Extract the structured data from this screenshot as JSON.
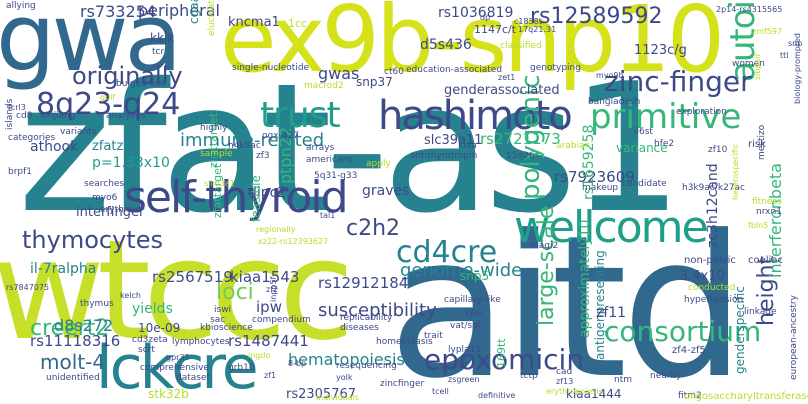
{
  "palette": [
    "#440154",
    "#482878",
    "#3e4989",
    "#31688e",
    "#26828e",
    "#1f9e89",
    "#35b779",
    "#6ece58",
    "#b5de2b",
    "#fde725"
  ],
  "words": [
    {
      "text": "zfat-as1",
      "color": "#26828e"
    },
    {
      "text": "aitd",
      "color": "#31688e"
    },
    {
      "text": "wtccc",
      "color": "#c8df2a"
    },
    {
      "text": "ex9b-snp10",
      "color": "#d5e21a"
    },
    {
      "text": "gwa",
      "color": "#31688e"
    },
    {
      "text": "lckcre",
      "color": "#26828e"
    },
    {
      "text": "self-thyroid",
      "color": "#3e4989"
    },
    {
      "text": "wellcome",
      "color": "#1f9e89"
    },
    {
      "text": "autoimmune",
      "color": "#35b779"
    },
    {
      "text": "hashimoto",
      "color": "#3e4989"
    },
    {
      "text": "trust",
      "color": "#1f9e89"
    },
    {
      "text": "8q23-q24",
      "color": "#3e4989"
    },
    {
      "text": "originally",
      "color": "#3e4989"
    },
    {
      "text": "zinc-finger",
      "color": "#3e4989"
    },
    {
      "text": "primitive",
      "color": "#35b779"
    },
    {
      "text": "polygenic",
      "color": "#35b779"
    },
    {
      "text": "consortium",
      "color": "#35b779"
    },
    {
      "text": "epoxomicin",
      "color": "#3e4989"
    },
    {
      "text": "cd4cre",
      "color": "#26828e"
    },
    {
      "text": "thymocytes",
      "color": "#3e4989"
    },
    {
      "text": "creert2",
      "color": "#35b779"
    },
    {
      "text": "molt-4",
      "color": "#31688e"
    },
    {
      "text": "hematopoiesis",
      "color": "#26828e"
    },
    {
      "text": "large-scale",
      "color": "#35b779"
    },
    {
      "text": "height",
      "color": "#3e4989"
    },
    {
      "text": "genome-wide",
      "color": "#26828e"
    },
    {
      "text": "immune-related",
      "color": "#26828e"
    },
    {
      "text": "c2h2",
      "color": "#3e4989"
    },
    {
      "text": "loci",
      "color": "#6ece58"
    },
    {
      "text": "susceptibility",
      "color": "#3e4989"
    },
    {
      "text": "rs12589592",
      "color": "#3e4989"
    },
    {
      "text": "rs1036819",
      "color": "#3e4989"
    },
    {
      "text": "rs733254",
      "color": "#3e4989"
    },
    {
      "text": "peripheral",
      "color": "#3e4989"
    },
    {
      "text": "interferonbeta",
      "color": "#35b779"
    },
    {
      "text": "zc3h12cand",
      "color": "#3e4989"
    },
    {
      "text": "rs2567519",
      "color": "#3e4989"
    },
    {
      "text": "kiaa1543",
      "color": "#3e4989"
    },
    {
      "text": "rs12912184",
      "color": "#3e4989"
    },
    {
      "text": "rs11118316",
      "color": "#3e4989"
    },
    {
      "text": "rs1487441",
      "color": "#3e4989"
    },
    {
      "text": "rs2305767",
      "color": "#3e4989"
    },
    {
      "text": "rs2721173",
      "color": "#35b779"
    },
    {
      "text": "rs7923609",
      "color": "#3e4989"
    },
    {
      "text": "rs1659258",
      "color": "#35b779"
    },
    {
      "text": "approximately10",
      "color": "#35b779"
    },
    {
      "text": "antigenpresenting",
      "color": "#26828e"
    },
    {
      "text": "genderspecific",
      "color": "#26828e"
    },
    {
      "text": "gwas",
      "color": "#3e4989"
    },
    {
      "text": "d8s272",
      "color": "#26828e"
    },
    {
      "text": "ptpn22",
      "color": "#35b779"
    },
    {
      "text": "graves",
      "color": "#3e4989"
    },
    {
      "text": "dipc2",
      "color": "#3e4989"
    },
    {
      "text": "slc39a11",
      "color": "#3e4989"
    },
    {
      "text": "genderassociated",
      "color": "#3e4989"
    },
    {
      "text": "athook",
      "color": "#3e4989"
    },
    {
      "text": "zfatzsg",
      "color": "#26828e"
    },
    {
      "text": "p=1.33x10",
      "color": "#1f9e89"
    },
    {
      "text": "interfinger",
      "color": "#3e4989"
    },
    {
      "text": "il-7ralpha",
      "color": "#26828e"
    },
    {
      "text": "3.4x10",
      "color": "#3e4989"
    },
    {
      "text": "yields",
      "color": "#35b779"
    },
    {
      "text": "10e-09",
      "color": "#3e4989"
    },
    {
      "text": "ipw",
      "color": "#3e4989"
    },
    {
      "text": "1123c/g",
      "color": "#3e4989"
    },
    {
      "text": "kncma1",
      "color": "#3e4989"
    },
    {
      "text": "d5s436",
      "color": "#3e4989"
    },
    {
      "text": "variance",
      "color": "#35b779"
    },
    {
      "text": "feasible",
      "color": "#35b779"
    },
    {
      "text": "zf11",
      "color": "#3e4989"
    },
    {
      "text": "stk32b",
      "color": "#b5de2b"
    },
    {
      "text": "snp37",
      "color": "#3e4989"
    },
    {
      "text": "snp5",
      "color": "#35b779"
    },
    {
      "text": "kiaa1444",
      "color": "#3e4989"
    },
    {
      "text": "cgaangtgc",
      "color": "#26828e"
    },
    {
      "text": "kkik",
      "color": "#3e4989"
    },
    {
      "text": "1147c/t",
      "color": "#3e4989"
    },
    {
      "text": "1cc",
      "color": "#b5de2b"
    },
    {
      "text": "zinctarget",
      "color": "#35b779"
    },
    {
      "text": "zfattarget",
      "color": "#35b779"
    },
    {
      "text": "non-pelvic",
      "color": "#3e4989"
    },
    {
      "text": "coeliac",
      "color": "#3e4989"
    },
    {
      "text": "169tt",
      "color": "#35b779"
    },
    {
      "text": "zf4-zf5",
      "color": "#3e4989"
    },
    {
      "text": "bangladesh",
      "color": "#3e4989"
    },
    {
      "text": "fitm2",
      "color": "#3e4989"
    },
    {
      "text": "oligosaccharyltransferase",
      "color": "#b5de2b"
    },
    {
      "text": "european-ancestry",
      "color": "#3e4989"
    },
    {
      "text": "hypertension",
      "color": "#3e4989"
    },
    {
      "text": "conducted",
      "color": "#b5de2b"
    },
    {
      "text": "linkage",
      "color": "#3e4989"
    },
    {
      "text": "exploration",
      "color": "#3e4989"
    },
    {
      "text": "cd8",
      "color": "#3e4989"
    },
    {
      "text": "xinjiang",
      "color": "#3e4989"
    },
    {
      "text": "analyses",
      "color": "#3e4989"
    },
    {
      "text": "islands",
      "color": "#3e4989"
    },
    {
      "text": "variants",
      "color": "#3e4989"
    },
    {
      "text": "categories",
      "color": "#3e4989"
    },
    {
      "text": "searches",
      "color": "#3e4989"
    },
    {
      "text": "brpf1",
      "color": "#3e4989"
    },
    {
      "text": "myo6",
      "color": "#3e4989"
    },
    {
      "text": "erythroid",
      "color": "#3e4989"
    },
    {
      "text": "thymus",
      "color": "#3e4989"
    },
    {
      "text": "scrt",
      "color": "#3e4989"
    },
    {
      "text": "comprehensive",
      "color": "#3e4989"
    },
    {
      "text": "unidentified",
      "color": "#3e4989"
    },
    {
      "text": "dataset",
      "color": "#3e4989"
    },
    {
      "text": "grb10",
      "color": "#3e4989"
    },
    {
      "text": "kbioscience",
      "color": "#3e4989"
    },
    {
      "text": "compendium",
      "color": "#3e4989"
    },
    {
      "text": "replicability",
      "color": "#3e4989"
    },
    {
      "text": "diseases",
      "color": "#3e4989"
    },
    {
      "text": "homeostasis",
      "color": "#3e4989"
    },
    {
      "text": "resequencing",
      "color": "#3e4989"
    },
    {
      "text": "zincfinger",
      "color": "#3e4989"
    },
    {
      "text": "lymphocytes",
      "color": "#3e4989"
    },
    {
      "text": "cd3zeta",
      "color": "#3e4989"
    },
    {
      "text": "iswi",
      "color": "#3e4989"
    },
    {
      "text": "sac",
      "color": "#3e4989"
    },
    {
      "text": "trait",
      "color": "#3e4989"
    },
    {
      "text": "lypla11",
      "color": "#3e4989"
    },
    {
      "text": "vat/sat",
      "color": "#3e4989"
    },
    {
      "text": "tctp",
      "color": "#3e4989"
    },
    {
      "text": "nearby",
      "color": "#3e4989"
    },
    {
      "text": "ntm",
      "color": "#3e4989"
    },
    {
      "text": "cad",
      "color": "#3e4989"
    },
    {
      "text": "candidate",
      "color": "#3e4989"
    },
    {
      "text": "makeup",
      "color": "#3e4989"
    },
    {
      "text": "h3k9ac/k27ac",
      "color": "#3e4989"
    },
    {
      "text": "fitness",
      "color": "#b5de2b"
    },
    {
      "text": "nrxn1",
      "color": "#3e4989"
    },
    {
      "text": "mestizo",
      "color": "#3e4989"
    },
    {
      "text": "risk",
      "color": "#3e4989"
    },
    {
      "text": "zf10",
      "color": "#3e4989"
    },
    {
      "text": "il6st",
      "color": "#3e4989"
    },
    {
      "text": "hfe2",
      "color": "#3e4989"
    },
    {
      "text": "arabian",
      "color": "#b5de2b"
    },
    {
      "text": "15q26",
      "color": "#3e4989"
    },
    {
      "text": "kiaa",
      "color": "#3e4989"
    },
    {
      "text": "americans",
      "color": "#3e4989"
    },
    {
      "text": "arrays",
      "color": "#3e4989"
    },
    {
      "text": "apply",
      "color": "#b5de2b"
    },
    {
      "text": "zf3",
      "color": "#3e4989"
    },
    {
      "text": "h4k8ac",
      "color": "#3e4989"
    },
    {
      "text": "sample",
      "color": "#b5de2b"
    },
    {
      "text": "highly",
      "color": "#3e4989"
    },
    {
      "text": "ogx-427",
      "color": "#3e4989"
    },
    {
      "text": "antithyrotropin",
      "color": "#3e4989"
    },
    {
      "text": "magi2",
      "color": "#3e4989"
    },
    {
      "text": "5q31-q33",
      "color": "#3e4989"
    },
    {
      "text": "tcr",
      "color": "#3e4989"
    },
    {
      "text": "elucidation",
      "color": "#b5de2b"
    },
    {
      "text": "single-nucleotide",
      "color": "#3e4989"
    },
    {
      "text": "bulged-out",
      "color": "#3e4989"
    },
    {
      "text": "macrod2",
      "color": "#b5de2b"
    },
    {
      "text": "ct60",
      "color": "#3e4989"
    },
    {
      "text": "education-associated",
      "color": "#3e4989"
    },
    {
      "text": "dp",
      "color": "#3e4989"
    },
    {
      "text": "genotyping",
      "color": "#3e4989"
    },
    {
      "text": "classified",
      "color": "#b5de2b"
    },
    {
      "text": "women",
      "color": "#3e4989"
    },
    {
      "text": "2p14-rs4315565",
      "color": "#3e4989"
    },
    {
      "text": "sibpair",
      "color": "#b5de2b"
    },
    {
      "text": "biology-prompted",
      "color": "#3e4989"
    },
    {
      "text": "zmf597",
      "color": "#b5de2b"
    },
    {
      "text": "myo9b",
      "color": "#3e4989"
    },
    {
      "text": "allying",
      "color": "#3e4989"
    },
    {
      "text": "gulf",
      "color": "#b5de2b"
    },
    {
      "text": "fcrl3",
      "color": "#3e4989"
    },
    {
      "text": "17q21.31",
      "color": "#3e4989"
    },
    {
      "text": "c1858t",
      "color": "#3e4989"
    },
    {
      "text": "xz22-rs12393627",
      "color": "#b5de2b"
    },
    {
      "text": "capillary-like",
      "color": "#3e4989"
    },
    {
      "text": "definitive",
      "color": "#3e4989"
    },
    {
      "text": "individuals",
      "color": "#b5de2b"
    },
    {
      "text": "gpr35",
      "color": "#3e4989"
    },
    {
      "text": "8-bp",
      "color": "#3e4989"
    },
    {
      "text": "ingdo",
      "color": "#b5de2b"
    },
    {
      "text": "tcell",
      "color": "#3e4989"
    },
    {
      "text": "zf2",
      "color": "#3e4989"
    },
    {
      "text": "zf13",
      "color": "#3e4989"
    },
    {
      "text": "erythropoiesis",
      "color": "#b5de2b"
    },
    {
      "text": "zsgreen",
      "color": "#3e4989"
    },
    {
      "text": "thns12",
      "color": "#3e4989"
    },
    {
      "text": "yolk",
      "color": "#3e4989"
    },
    {
      "text": "zf1",
      "color": "#3e4989"
    },
    {
      "text": "regionally",
      "color": "#b5de2b"
    },
    {
      "text": "heterospecific",
      "color": "#b5de2b"
    },
    {
      "text": "rs7847075",
      "color": "#3e4989"
    },
    {
      "text": "tal1",
      "color": "#3e4989"
    },
    {
      "text": "slco3a1",
      "color": "#b5de2b"
    },
    {
      "text": "kelch",
      "color": "#3e4989"
    },
    {
      "text": "snp",
      "color": "#3e4989"
    },
    {
      "text": "fbln5",
      "color": "#b5de2b"
    },
    {
      "text": "c6ot",
      "color": "#3e4989"
    },
    {
      "text": "zet1",
      "color": "#3e4989"
    },
    {
      "text": "inpp5f",
      "color": "#3e4989"
    },
    {
      "text": "ttl",
      "color": "#3e4989"
    }
  ]
}
